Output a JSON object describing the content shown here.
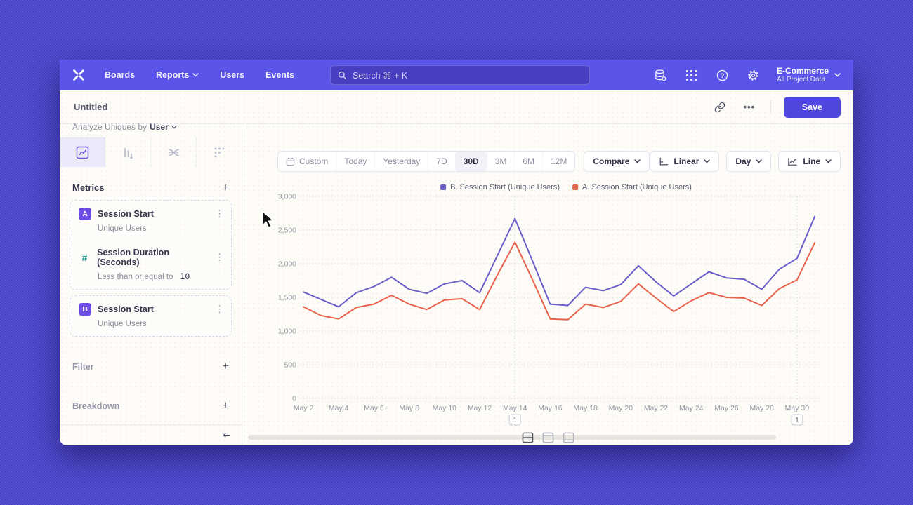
{
  "nav": {
    "items": [
      {
        "label": "Boards",
        "chevron": false
      },
      {
        "label": "Reports",
        "chevron": true
      },
      {
        "label": "Users",
        "chevron": false
      },
      {
        "label": "Events",
        "chevron": false
      }
    ],
    "search": {
      "placeholder": "Search  ⌘ + K"
    },
    "project": {
      "name": "E-Commerce",
      "scope": "All Project Data"
    }
  },
  "titlebar": {
    "title": "Untitled",
    "save_label": "Save"
  },
  "sidebar": {
    "analyze_label": "Analyze Uniques by",
    "analyze_value": "User",
    "metrics_header": "Metrics",
    "metric_groups": [
      {
        "rows": [
          {
            "badge": "A",
            "badge_type": "letter",
            "title": "Session Start",
            "subtitle": "Unique Users",
            "value": ""
          },
          {
            "badge": "#",
            "badge_type": "hash",
            "title": "Session Duration (Seconds)",
            "subtitle": "Less than or equal to",
            "value": "10"
          }
        ]
      },
      {
        "rows": [
          {
            "badge": "B",
            "badge_type": "letter",
            "title": "Session Start",
            "subtitle": "Unique Users",
            "value": ""
          }
        ]
      }
    ],
    "sections": [
      {
        "label": "Filter"
      },
      {
        "label": "Breakdown"
      }
    ]
  },
  "toolbar": {
    "ranges": [
      "Custom",
      "Today",
      "Yesterday",
      "7D",
      "30D",
      "3M",
      "6M",
      "12M"
    ],
    "selected_range": "30D",
    "compare_label": "Compare",
    "scale_label": "Linear",
    "interval_label": "Day",
    "chart_type_label": "Line"
  },
  "chart_data": {
    "type": "line",
    "x": [
      "May 2",
      "May 3",
      "May 4",
      "May 5",
      "May 6",
      "May 7",
      "May 8",
      "May 9",
      "May 10",
      "May 11",
      "May 12",
      "May 13",
      "May 14",
      "May 15",
      "May 16",
      "May 17",
      "May 18",
      "May 19",
      "May 20",
      "May 21",
      "May 22",
      "May 23",
      "May 24",
      "May 25",
      "May 26",
      "May 27",
      "May 28",
      "May 29",
      "May 30",
      "May 31"
    ],
    "x_labeled_every": 2,
    "series": [
      {
        "name": "B. Session Start (Unique Users)",
        "color": "#6a5ec9",
        "values": [
          1580,
          1470,
          1360,
          1570,
          1660,
          1800,
          1620,
          1560,
          1700,
          1750,
          1570,
          2120,
          2670,
          2040,
          1400,
          1380,
          1650,
          1600,
          1690,
          1970,
          1730,
          1520,
          1700,
          1880,
          1790,
          1770,
          1620,
          1920,
          2080,
          2700
        ]
      },
      {
        "name": "A. Session Start (Unique Users)",
        "color": "#e8624c",
        "values": [
          1360,
          1230,
          1180,
          1350,
          1400,
          1530,
          1400,
          1320,
          1460,
          1480,
          1320,
          1830,
          2320,
          1760,
          1180,
          1170,
          1400,
          1350,
          1440,
          1700,
          1490,
          1290,
          1450,
          1570,
          1500,
          1490,
          1380,
          1630,
          1760,
          2310
        ]
      }
    ],
    "ylim": [
      0,
      3000
    ],
    "yticks": [
      0,
      500,
      1000,
      1500,
      2000,
      2500,
      3000
    ],
    "grid": "horizontal-dotted",
    "legend_position": "top-center",
    "annotations": [
      {
        "x_label": "May 14",
        "label": "1"
      },
      {
        "x_label": "May 30",
        "label": "1"
      }
    ]
  }
}
